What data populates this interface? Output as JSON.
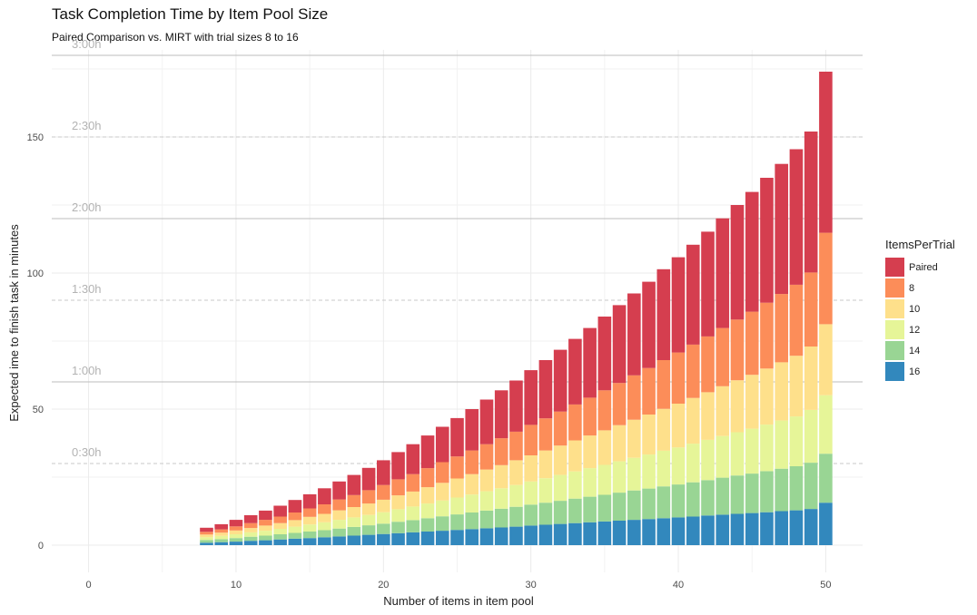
{
  "chart_data": {
    "type": "bar",
    "stacked": true,
    "title": "Task Completion Time by Item Pool Size",
    "subtitle": "Paired Comparison vs. MIRT with trial sizes 8 to 16",
    "xlabel": "Number of items in item pool",
    "ylabel": "Expected ime to finish task in minutes",
    "xlim": [
      -2.5,
      52.5
    ],
    "ylim": [
      -10,
      182
    ],
    "x_ticks": [
      "0",
      "10",
      "20",
      "30",
      "40",
      "50"
    ],
    "y_ticks": [
      "0",
      "50",
      "100",
      "150"
    ],
    "grid": true,
    "legend_title": "ItemsPerTrial",
    "legend_position": "right",
    "x": [
      8,
      9,
      10,
      11,
      12,
      13,
      14,
      15,
      16,
      17,
      18,
      19,
      20,
      21,
      22,
      23,
      24,
      25,
      26,
      27,
      28,
      29,
      30,
      31,
      32,
      33,
      34,
      35,
      36,
      37,
      38,
      39,
      40,
      41,
      42,
      43,
      44,
      45,
      46,
      47,
      48,
      49,
      50
    ],
    "series": [
      {
        "name": "16",
        "color": "#3288bd",
        "values": [
          0.9,
          1.1,
          1.3,
          1.6,
          1.8,
          2.1,
          2.4,
          2.6,
          2.9,
          3.2,
          3.5,
          3.8,
          4.1,
          4.4,
          4.7,
          5.0,
          5.3,
          5.6,
          5.9,
          6.2,
          6.5,
          6.8,
          7.2,
          7.5,
          7.8,
          8.1,
          8.4,
          8.7,
          9.0,
          9.3,
          9.6,
          9.9,
          10.2,
          10.5,
          10.9,
          11.2,
          11.5,
          11.8,
          12.1,
          12.5,
          12.8,
          13.3,
          15.6
        ]
      },
      {
        "name": "14",
        "color": "#99d594",
        "values": [
          1.0,
          1.1,
          1.3,
          1.5,
          1.7,
          1.9,
          2.1,
          2.4,
          2.6,
          2.9,
          3.2,
          3.5,
          3.8,
          4.2,
          4.5,
          4.9,
          5.3,
          5.7,
          6.1,
          6.5,
          6.9,
          7.3,
          7.7,
          8.1,
          8.5,
          9.0,
          9.4,
          9.8,
          10.3,
          10.8,
          11.2,
          11.7,
          12.1,
          12.6,
          13.0,
          13.6,
          14.1,
          14.5,
          15.1,
          15.6,
          16.2,
          17.0,
          18.0
        ]
      },
      {
        "name": "12",
        "color": "#e6f598",
        "values": [
          1.0,
          1.2,
          1.4,
          1.6,
          1.8,
          2.0,
          2.3,
          2.6,
          2.9,
          3.2,
          3.5,
          3.8,
          4.2,
          4.6,
          5.0,
          5.4,
          5.8,
          6.2,
          6.6,
          7.1,
          7.5,
          8.0,
          8.5,
          9.0,
          9.5,
          10.0,
          10.5,
          11.0,
          11.5,
          12.0,
          12.5,
          13.1,
          13.6,
          14.2,
          14.8,
          15.3,
          15.9,
          16.5,
          17.1,
          17.7,
          18.3,
          19.4,
          21.5
        ]
      },
      {
        "name": "10",
        "color": "#fee08b",
        "values": [
          1.0,
          1.2,
          1.4,
          1.6,
          1.9,
          2.1,
          2.4,
          2.8,
          3.1,
          3.5,
          3.8,
          4.2,
          4.6,
          5.1,
          5.5,
          6.0,
          6.5,
          7.0,
          7.5,
          8.0,
          8.5,
          9.1,
          9.6,
          10.2,
          10.8,
          11.4,
          12.0,
          12.7,
          13.3,
          14.0,
          14.7,
          15.4,
          16.1,
          16.8,
          17.5,
          18.3,
          19.1,
          19.8,
          20.6,
          21.4,
          22.3,
          23.3,
          26.1
        ]
      },
      {
        "name": "8",
        "color": "#fc8d59",
        "values": [
          1.0,
          1.2,
          1.5,
          1.8,
          2.1,
          2.4,
          2.8,
          3.1,
          3.5,
          4.0,
          4.4,
          4.9,
          5.4,
          5.9,
          6.4,
          7.0,
          7.6,
          8.1,
          8.7,
          9.3,
          9.9,
          10.5,
          11.2,
          11.8,
          12.5,
          13.2,
          13.9,
          14.7,
          15.5,
          16.3,
          17.1,
          17.9,
          18.8,
          19.6,
          20.5,
          21.4,
          22.3,
          23.2,
          24.2,
          25.1,
          26.1,
          27.2,
          33.6
        ]
      },
      {
        "name": "Paired",
        "color": "#d53e4f",
        "values": [
          1.5,
          1.9,
          2.4,
          2.9,
          3.4,
          4.0,
          4.6,
          5.2,
          5.9,
          6.6,
          7.4,
          8.2,
          9.1,
          10.0,
          11.0,
          12.0,
          13.0,
          14.1,
          15.2,
          16.4,
          17.6,
          18.8,
          20.1,
          21.4,
          22.7,
          24.1,
          25.6,
          27.1,
          28.6,
          30.1,
          31.7,
          33.4,
          35.0,
          36.7,
          38.5,
          40.3,
          42.1,
          44.0,
          45.9,
          47.8,
          49.8,
          51.8,
          59.2
        ]
      }
    ],
    "reference_lines": [
      {
        "label": "0:30h",
        "value": 30,
        "style": "dashed"
      },
      {
        "label": "1:00h",
        "value": 60,
        "style": "solid"
      },
      {
        "label": "1:30h",
        "value": 90,
        "style": "dashed"
      },
      {
        "label": "2:00h",
        "value": 120,
        "style": "solid"
      },
      {
        "label": "2:30h",
        "value": 150,
        "style": "dashed"
      },
      {
        "label": "3:00h",
        "value": 180,
        "style": "solid"
      }
    ],
    "legend_order": [
      "Paired",
      "8",
      "10",
      "12",
      "14",
      "16"
    ]
  }
}
